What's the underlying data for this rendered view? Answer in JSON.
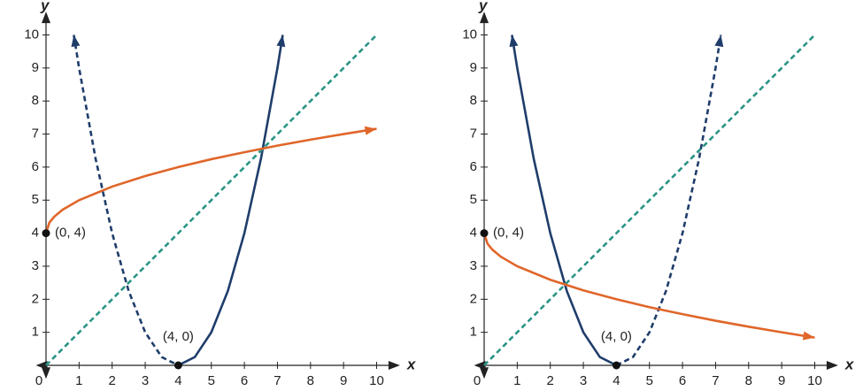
{
  "chart_data": [
    {
      "type": "line",
      "xlabel": "x",
      "ylabel": "y",
      "xlim": [
        -0.2,
        10.6
      ],
      "ylim": [
        -0.3,
        10.6
      ],
      "xticks": [
        0,
        1,
        2,
        3,
        4,
        5,
        6,
        7,
        8,
        9,
        10
      ],
      "yticks": [
        1,
        2,
        3,
        4,
        5,
        6,
        7,
        8,
        9,
        10
      ],
      "series": [
        {
          "color": "#1f3d6b",
          "dashed": true,
          "arrow": "start",
          "x": [
            0.84,
            1,
            1.5,
            2,
            2.5,
            3,
            3.5,
            4
          ],
          "y": [
            10,
            9,
            6.25,
            4,
            2.25,
            1,
            0.25,
            0
          ]
        },
        {
          "color": "#1f3d6b",
          "dashed": false,
          "arrow": "end",
          "x": [
            4,
            4.5,
            5,
            5.5,
            6,
            6.5,
            7,
            7.16
          ],
          "y": [
            0,
            0.25,
            1,
            2.25,
            4,
            6.25,
            9,
            10
          ]
        },
        {
          "color": "#2a9485",
          "dashed": true,
          "arrow": "none",
          "x": [
            0,
            10
          ],
          "y": [
            0,
            10
          ]
        },
        {
          "color": "#e0662a",
          "dashed": false,
          "arrow": "end",
          "x": [
            0,
            0.1,
            0.25,
            0.5,
            1,
            2,
            3,
            4,
            5,
            6,
            7,
            8,
            9,
            10
          ],
          "y": [
            4,
            4.32,
            4.5,
            4.71,
            5,
            5.41,
            5.73,
            6,
            6.24,
            6.45,
            6.65,
            6.83,
            7,
            7.16
          ]
        }
      ],
      "points": [
        {
          "x": 0,
          "y": 4,
          "label": "(0, 4)"
        },
        {
          "x": 4,
          "y": 0,
          "label": "(4, 0)"
        }
      ]
    },
    {
      "type": "line",
      "xlabel": "x",
      "ylabel": "y",
      "xlim": [
        -0.2,
        10.6
      ],
      "ylim": [
        -0.3,
        10.6
      ],
      "xticks": [
        0,
        1,
        2,
        3,
        4,
        5,
        6,
        7,
        8,
        9,
        10
      ],
      "yticks": [
        1,
        2,
        3,
        4,
        5,
        6,
        7,
        8,
        9,
        10
      ],
      "series": [
        {
          "color": "#1f3d6b",
          "dashed": false,
          "arrow": "start",
          "x": [
            0.84,
            1,
            1.5,
            2,
            2.5,
            3,
            3.5,
            4
          ],
          "y": [
            10,
            9,
            6.25,
            4,
            2.25,
            1,
            0.25,
            0
          ]
        },
        {
          "color": "#1f3d6b",
          "dashed": true,
          "arrow": "end",
          "x": [
            4,
            4.5,
            5,
            5.5,
            6,
            6.5,
            7,
            7.16
          ],
          "y": [
            0,
            0.25,
            1,
            2.25,
            4,
            6.25,
            9,
            10
          ]
        },
        {
          "color": "#2a9485",
          "dashed": true,
          "arrow": "none",
          "x": [
            0,
            10
          ],
          "y": [
            0,
            10
          ]
        },
        {
          "color": "#e0662a",
          "dashed": false,
          "arrow": "end",
          "x": [
            0,
            0.1,
            0.25,
            0.5,
            1,
            2,
            3,
            4,
            5,
            6,
            7,
            8,
            9,
            10
          ],
          "y": [
            4,
            3.68,
            3.5,
            3.29,
            3,
            2.59,
            2.27,
            2,
            1.76,
            1.55,
            1.35,
            1.17,
            1,
            0.84
          ]
        }
      ],
      "points": [
        {
          "x": 0,
          "y": 4,
          "label": "(0, 4)"
        },
        {
          "x": 4,
          "y": 0,
          "label": "(4, 0)"
        }
      ]
    }
  ]
}
